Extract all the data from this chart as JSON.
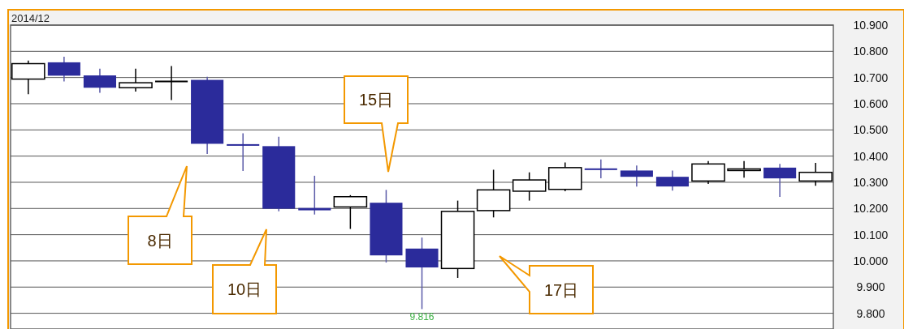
{
  "chart_data": {
    "type": "candlestick",
    "title": "2014/12",
    "categories": [
      null,
      null,
      null,
      null,
      null,
      null,
      null,
      null,
      null,
      null,
      null,
      null,
      null,
      null,
      null,
      null,
      null,
      null,
      null,
      null,
      null,
      null,
      null
    ],
    "ohlc": [
      [
        10.694,
        10.765,
        10.636,
        10.753
      ],
      [
        10.758,
        10.779,
        10.685,
        10.707
      ],
      [
        10.708,
        10.734,
        10.642,
        10.661
      ],
      [
        10.661,
        10.734,
        10.646,
        10.68
      ],
      [
        10.685,
        10.744,
        10.614,
        10.685
      ],
      [
        10.691,
        10.703,
        10.408,
        10.447
      ],
      [
        10.445,
        10.487,
        10.343,
        10.44
      ],
      [
        10.438,
        10.474,
        10.189,
        10.199
      ],
      [
        10.202,
        10.325,
        10.177,
        10.193
      ],
      [
        10.206,
        10.251,
        10.122,
        10.245
      ],
      [
        10.222,
        10.271,
        9.994,
        10.021
      ],
      [
        10.047,
        10.089,
        9.816,
        9.975
      ],
      [
        9.971,
        10.23,
        9.935,
        10.189
      ],
      [
        10.192,
        10.348,
        10.166,
        10.271
      ],
      [
        10.266,
        10.338,
        10.23,
        10.309
      ],
      [
        10.273,
        10.376,
        10.266,
        10.356
      ],
      [
        10.352,
        10.387,
        10.315,
        10.348
      ],
      [
        10.345,
        10.364,
        10.284,
        10.321
      ],
      [
        10.321,
        10.345,
        10.268,
        10.284
      ],
      [
        10.305,
        10.381,
        10.294,
        10.37
      ],
      [
        10.345,
        10.381,
        10.318,
        10.351
      ],
      [
        10.356,
        10.37,
        10.244,
        10.315
      ],
      [
        10.305,
        10.374,
        10.287,
        10.338
      ]
    ],
    "colors": [
      "#ffffff",
      "#2b2b9b",
      "#2b2b9b",
      "#ffffff",
      "#000000",
      "#2b2b9b",
      "#2b2b9b",
      "#2b2b9b",
      "#2b2b9b",
      "#ffffff",
      "#2b2b9b",
      "#2b2b9b",
      "#ffffff",
      "#ffffff",
      "#ffffff",
      "#ffffff",
      "#2b2b9b",
      "#2b2b9b",
      "#2b2b9b",
      "#ffffff",
      "#ffffff",
      "#2b2b9b",
      "#ffffff"
    ],
    "ylim": [
      9.74,
      10.9
    ],
    "yticks": [
      {
        "value": 9.8,
        "label": "9.800"
      },
      {
        "value": 9.9,
        "label": "9.900"
      },
      {
        "value": 10.0,
        "label": "10.000"
      },
      {
        "value": 10.1,
        "label": "10.100"
      },
      {
        "value": 10.2,
        "label": "10.200"
      },
      {
        "value": 10.3,
        "label": "10.300"
      },
      {
        "value": 10.4,
        "label": "10.400"
      },
      {
        "value": 10.5,
        "label": "10.500"
      },
      {
        "value": 10.6,
        "label": "10.600"
      },
      {
        "value": 10.7,
        "label": "10.700"
      },
      {
        "value": 10.8,
        "label": "10.800"
      },
      {
        "value": 10.9,
        "label": "10.900"
      }
    ],
    "grid": "y",
    "annotations": [
      "8日",
      "10日",
      "15日",
      "17日",
      {
        "text": "9.816",
        "y": 9.816
      }
    ]
  }
}
